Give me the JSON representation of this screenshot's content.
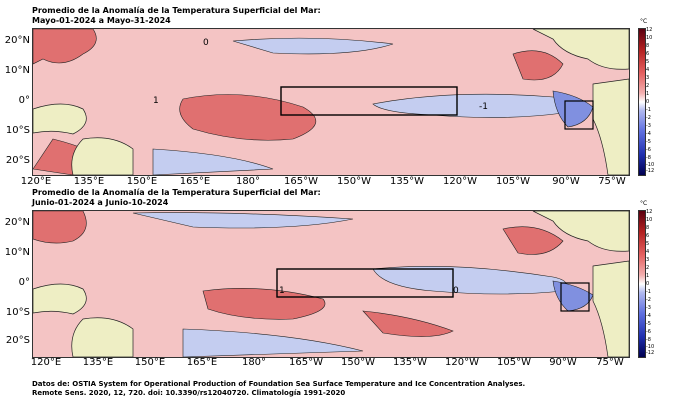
{
  "panels": [
    {
      "title_line1": "Promedio de la Anomalía de la Temperatura Superficial del Mar:",
      "title_line2": "Mayo-01-2024 a Mayo-31-2024"
    },
    {
      "title_line1": "Promedio de la Anomalía de la Temperatura Superficial del Mar:",
      "title_line2": "Junio-01-2024 a Junio-10-2024"
    }
  ],
  "lat_labels": [
    "20°N",
    "10°N",
    "0°",
    "10°S",
    "20°S"
  ],
  "lon_labels": [
    "120°E",
    "135°E",
    "150°E",
    "165°E",
    "180°",
    "165°W",
    "150°W",
    "135°W",
    "120°W",
    "105°W",
    "90°W",
    "75°W"
  ],
  "colorbar": {
    "unit": "°C",
    "ticks": [
      "12",
      "10",
      "8",
      "6",
      "5",
      "4",
      "3",
      "2",
      "1",
      "0",
      "-1",
      "-2",
      "-3",
      "-4",
      "-5",
      "-6",
      "-8",
      "-10",
      "-12"
    ],
    "range": [
      -12,
      12
    ]
  },
  "contour_labels": [
    "0",
    "1",
    "-1"
  ],
  "colors": {
    "warm_anomaly": "#f4c4c4",
    "strong_warm": "#e07070",
    "cool_anomaly": "#c4cdf0",
    "land": "#eeeec4",
    "coast": "#222222"
  },
  "footer_line1": "Datos de: OSTIA System for Operational Production of Foundation Sea Surface Temperature and Ice Concentration Analyses.",
  "footer_line2": "Remote Sens. 2020, 12, 720. doi: 10.3390/rs12040720. Climatología 1991-2020"
}
